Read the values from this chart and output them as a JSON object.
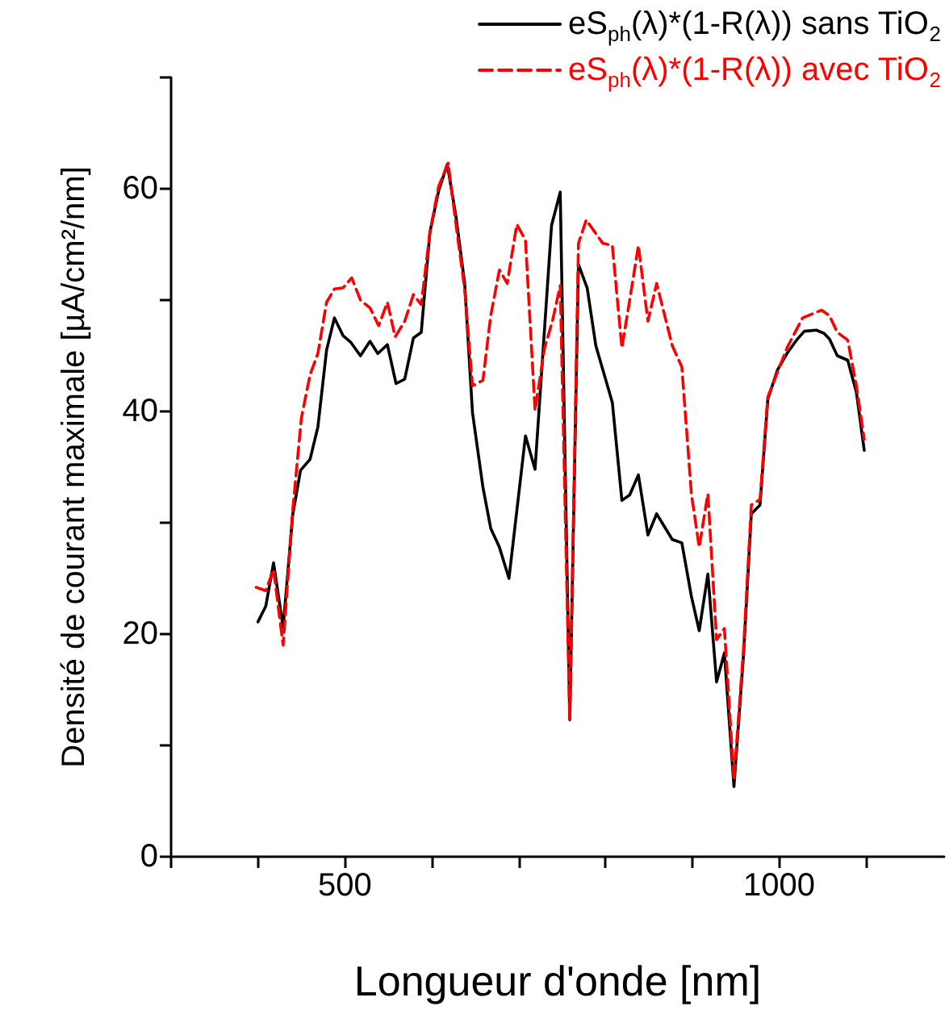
{
  "chart_data": {
    "type": "line",
    "xlabel": "Longueur d'onde [nm]",
    "ylabel": "Densité de courant maximale [µA/cm²/nm]",
    "xlim": [
      300,
      1190
    ],
    "ylim": [
      0,
      70
    ],
    "xticks": [
      {
        "value": 300,
        "label": null
      },
      {
        "value": 400,
        "label": null
      },
      500,
      {
        "value": 600,
        "label": null
      },
      {
        "value": 700,
        "label": null
      },
      {
        "value": 800,
        "label": null
      },
      {
        "value": 900,
        "label": null
      },
      1000,
      {
        "value": 1100,
        "label": null
      }
    ],
    "yticks": [
      0,
      {
        "value": 10,
        "label": null
      },
      20,
      {
        "value": 30,
        "label": null
      },
      40,
      {
        "value": 50,
        "label": null
      },
      60,
      {
        "value": 70,
        "label": null
      }
    ],
    "legend": "top right",
    "grid": false,
    "marker": "none",
    "series": [
      {
        "name": "eS$_{ph}$(λ)*(1-R(λ)) sans TiO$_{2}$",
        "color": "#000000",
        "line_style": "solid",
        "x": [
          400,
          409,
          418,
          429,
          440,
          449,
          460,
          469,
          479,
          488,
          498,
          507,
          518,
          529,
          538,
          549,
          559,
          569,
          579,
          588,
          598,
          608,
          618,
          628,
          638,
          647,
          659,
          668,
          678,
          689,
          708,
          719,
          738,
          748,
          759,
          769,
          779,
          789,
          808,
          819,
          828,
          838,
          849,
          859,
          877,
          888,
          899,
          908,
          918,
          928,
          937,
          948,
          959,
          968,
          978,
          987,
          998,
          1009,
          1020,
          1029,
          1043,
          1052,
          1058,
          1067,
          1079,
          1089,
          1098
        ],
        "values": [
          21.1,
          22.5,
          26.4,
          20.6,
          30.7,
          34.7,
          35.7,
          38.6,
          45.5,
          48.4,
          46.8,
          46.2,
          45.0,
          46.3,
          45.2,
          46.0,
          42.5,
          42.9,
          46.6,
          47.1,
          56.1,
          59.8,
          62.2,
          57.5,
          51.5,
          39.9,
          33.2,
          29.5,
          27.8,
          25.0,
          37.8,
          34.8,
          56.7,
          59.7,
          12.3,
          53.2,
          51.1,
          45.9,
          40.8,
          32.0,
          32.5,
          34.3,
          28.9,
          30.8,
          28.5,
          28.2,
          23.4,
          20.3,
          25.4,
          15.7,
          18.3,
          6.3,
          18.1,
          30.8,
          31.6,
          41.1,
          43.7,
          45.2,
          46.4,
          47.2,
          47.3,
          47.0,
          46.5,
          45.0,
          44.6,
          41.7,
          36.5
        ]
      },
      {
        "name": "eS$_{ph}$(λ)*(1-R(λ)) avec TiO$_{2}$",
        "color": "#ff0000",
        "line_style": "dashed",
        "x": [
          398,
          409,
          418,
          429,
          440,
          450,
          460,
          469,
          479,
          488,
          498,
          508,
          518,
          529,
          539,
          549,
          558,
          569,
          579,
          588,
          598,
          608,
          619,
          628,
          638,
          647,
          659,
          668,
          678,
          687,
          698,
          708,
          719,
          730,
          739,
          748,
          759,
          769,
          778,
          797,
          808,
          819,
          828,
          838,
          849,
          859,
          877,
          888,
          899,
          908,
          918,
          928,
          937,
          948,
          959,
          968,
          978,
          987,
          998,
          1009,
          1027,
          1049,
          1058,
          1067,
          1079,
          1089,
          1098
        ],
        "values": [
          24.2,
          23.9,
          25.8,
          19.0,
          31.1,
          39.4,
          43.3,
          45.2,
          49.8,
          51.0,
          51.1,
          52.0,
          50.0,
          49.3,
          47.7,
          49.8,
          46.7,
          48.1,
          50.5,
          49.6,
          56.1,
          60.2,
          62.3,
          56.8,
          51.0,
          42.3,
          42.8,
          48.6,
          52.7,
          51.5,
          56.8,
          55.4,
          40.1,
          45.7,
          48.1,
          51.3,
          12.3,
          55.1,
          57.2,
          55.1,
          54.9,
          45.7,
          50.0,
          54.9,
          48.1,
          51.5,
          45.9,
          44.0,
          32.6,
          27.8,
          32.6,
          19.5,
          20.5,
          6.9,
          18.6,
          31.6,
          32.1,
          41.3,
          43.5,
          45.7,
          48.4,
          49.1,
          48.6,
          47.1,
          46.4,
          42.3,
          37.5
        ]
      }
    ]
  }
}
